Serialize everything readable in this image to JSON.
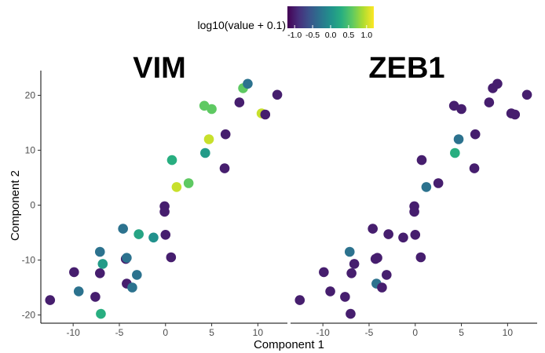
{
  "chart_data": [
    {
      "type": "scatter",
      "title": "VIM",
      "xlabel": "Component 1",
      "ylabel": "Component 2",
      "xlim": [
        -13.5,
        13.2
      ],
      "ylim": [
        -21.5,
        24.5
      ],
      "xticks": [
        -10,
        -5,
        0,
        5,
        10
      ],
      "yticks": [
        -20,
        -10,
        0,
        10,
        20
      ],
      "grid": false,
      "points": [
        {
          "x": -12.5,
          "y": -17.3,
          "c": -1.0
        },
        {
          "x": -9.9,
          "y": -12.2,
          "c": -1.0
        },
        {
          "x": -9.4,
          "y": -15.7,
          "c": -0.3
        },
        {
          "x": -7.6,
          "y": -16.7,
          "c": -1.0
        },
        {
          "x": -7.1,
          "y": -12.4,
          "c": -1.0
        },
        {
          "x": -7.1,
          "y": -8.5,
          "c": -0.3
        },
        {
          "x": -6.8,
          "y": -10.7,
          "c": 0.1
        },
        {
          "x": -7.0,
          "y": -19.8,
          "c": 0.3
        },
        {
          "x": -4.6,
          "y": -4.3,
          "c": -0.3
        },
        {
          "x": -4.3,
          "y": -9.8,
          "c": -1.0
        },
        {
          "x": -4.2,
          "y": -9.6,
          "c": -0.3
        },
        {
          "x": -4.2,
          "y": -14.3,
          "c": -1.0
        },
        {
          "x": -3.6,
          "y": -15.0,
          "c": -0.3
        },
        {
          "x": -3.1,
          "y": -12.7,
          "c": -0.3
        },
        {
          "x": -2.9,
          "y": -5.3,
          "c": 0.2
        },
        {
          "x": -1.3,
          "y": -5.9,
          "c": 0.0
        },
        {
          "x": -0.1,
          "y": -0.2,
          "c": -1.0
        },
        {
          "x": -0.1,
          "y": -1.2,
          "c": -1.0
        },
        {
          "x": 0.0,
          "y": -5.4,
          "c": -1.0
        },
        {
          "x": 0.6,
          "y": -9.5,
          "c": -1.0
        },
        {
          "x": 0.7,
          "y": 8.2,
          "c": 0.3
        },
        {
          "x": 1.2,
          "y": 3.3,
          "c": 1.0
        },
        {
          "x": 2.5,
          "y": 4.0,
          "c": 0.6
        },
        {
          "x": 4.2,
          "y": 18.1,
          "c": 0.6
        },
        {
          "x": 4.3,
          "y": 9.5,
          "c": 0.1
        },
        {
          "x": 4.7,
          "y": 12.0,
          "c": 1.0
        },
        {
          "x": 5.0,
          "y": 17.5,
          "c": 0.6
        },
        {
          "x": 6.4,
          "y": 6.7,
          "c": -1.0
        },
        {
          "x": 6.5,
          "y": 12.9,
          "c": -1.0
        },
        {
          "x": 8.0,
          "y": 18.7,
          "c": -1.0
        },
        {
          "x": 8.4,
          "y": 21.3,
          "c": 0.6
        },
        {
          "x": 8.9,
          "y": 22.1,
          "c": -0.3
        },
        {
          "x": 10.4,
          "y": 16.7,
          "c": 1.0
        },
        {
          "x": 10.8,
          "y": 16.5,
          "c": -1.0
        },
        {
          "x": 12.1,
          "y": 20.1,
          "c": -1.0
        }
      ]
    },
    {
      "type": "scatter",
      "title": "ZEB1",
      "xlabel": "Component 1",
      "ylabel": "Component 2",
      "xlim": [
        -13.5,
        13.2
      ],
      "ylim": [
        -21.5,
        24.5
      ],
      "xticks": [
        -10,
        -5,
        0,
        5,
        10
      ],
      "yticks": [
        -20,
        -10,
        0,
        10,
        20
      ],
      "grid": false,
      "points": [
        {
          "x": -12.5,
          "y": -17.3,
          "c": -1.0
        },
        {
          "x": -9.9,
          "y": -12.2,
          "c": -1.0
        },
        {
          "x": -9.2,
          "y": -15.7,
          "c": -1.0
        },
        {
          "x": -7.6,
          "y": -16.7,
          "c": -1.0
        },
        {
          "x": -7.1,
          "y": -8.5,
          "c": -0.3
        },
        {
          "x": -6.9,
          "y": -12.4,
          "c": -1.0
        },
        {
          "x": -6.6,
          "y": -10.7,
          "c": -1.0
        },
        {
          "x": -7.0,
          "y": -19.8,
          "c": -1.0
        },
        {
          "x": -4.6,
          "y": -4.3,
          "c": -1.0
        },
        {
          "x": -4.3,
          "y": -9.8,
          "c": -1.0
        },
        {
          "x": -4.1,
          "y": -9.6,
          "c": -1.0
        },
        {
          "x": -4.2,
          "y": -14.3,
          "c": -0.3
        },
        {
          "x": -3.6,
          "y": -15.0,
          "c": -1.0
        },
        {
          "x": -3.1,
          "y": -12.7,
          "c": -1.0
        },
        {
          "x": -2.9,
          "y": -5.3,
          "c": -1.0
        },
        {
          "x": -1.3,
          "y": -5.9,
          "c": -1.0
        },
        {
          "x": -0.1,
          "y": -0.2,
          "c": -1.0
        },
        {
          "x": -0.1,
          "y": -1.2,
          "c": -1.0
        },
        {
          "x": 0.0,
          "y": -5.4,
          "c": -1.0
        },
        {
          "x": 0.6,
          "y": -9.5,
          "c": -1.0
        },
        {
          "x": 0.7,
          "y": 8.2,
          "c": -1.0
        },
        {
          "x": 1.2,
          "y": 3.3,
          "c": -0.3
        },
        {
          "x": 2.5,
          "y": 4.0,
          "c": -1.0
        },
        {
          "x": 4.2,
          "y": 18.1,
          "c": -1.0
        },
        {
          "x": 4.3,
          "y": 9.5,
          "c": 0.3
        },
        {
          "x": 4.7,
          "y": 12.0,
          "c": -0.3
        },
        {
          "x": 5.0,
          "y": 17.5,
          "c": -1.0
        },
        {
          "x": 6.4,
          "y": 6.7,
          "c": -1.0
        },
        {
          "x": 6.5,
          "y": 12.9,
          "c": -1.0
        },
        {
          "x": 8.0,
          "y": 18.7,
          "c": -1.0
        },
        {
          "x": 8.4,
          "y": 21.3,
          "c": -1.0
        },
        {
          "x": 8.9,
          "y": 22.1,
          "c": -1.0
        },
        {
          "x": 10.4,
          "y": 16.7,
          "c": -1.0
        },
        {
          "x": 10.8,
          "y": 16.5,
          "c": -1.0
        },
        {
          "x": 12.1,
          "y": 20.1,
          "c": -1.0
        }
      ]
    }
  ],
  "figure": {
    "xlabel": "Component 1",
    "ylabel": "Component 2",
    "panel_titles": [
      "VIM",
      "ZEB1"
    ]
  },
  "legend": {
    "title": "log10(value + 0.1)",
    "ticks": [
      "-1.0",
      "-0.5",
      "0.0",
      "0.5",
      "1.0"
    ],
    "tick_values": [
      -1.0,
      -0.5,
      0.0,
      0.5,
      1.0
    ],
    "range": [
      -1.2,
      1.2
    ],
    "placement": "top",
    "palette": [
      "#440154",
      "#472d7b",
      "#3b528b",
      "#2c728e",
      "#21918c",
      "#28ae80",
      "#5ec962",
      "#addc30",
      "#fde725"
    ]
  }
}
